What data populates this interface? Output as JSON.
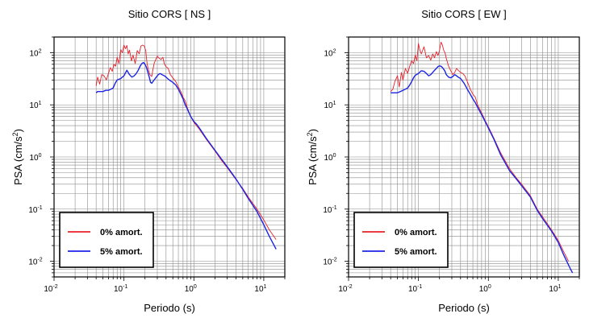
{
  "chart_data": [
    {
      "type": "line",
      "title": "Sitio CORS [ NS ]",
      "xlabel": "Periodo (s)",
      "ylabel_main": "PSA (cm/s",
      "ylabel_sup": "2",
      "ylabel_end": ")",
      "x_scale": "log",
      "y_scale": "log",
      "xlim": [
        0.01,
        20
      ],
      "ylim": [
        0.005,
        200
      ],
      "grid": true,
      "legend_position": "bottom-left",
      "x_ticks": [
        {
          "base": "10",
          "exp": "-2",
          "value": 0.01
        },
        {
          "base": "10",
          "exp": "-1",
          "value": 0.1
        },
        {
          "base": "10",
          "exp": "0",
          "value": 1
        },
        {
          "base": "10",
          "exp": "1",
          "value": 10
        }
      ],
      "y_ticks": [
        {
          "base": "10",
          "exp": "-2",
          "value": 0.01
        },
        {
          "base": "10",
          "exp": "-1",
          "value": 0.1
        },
        {
          "base": "10",
          "exp": "0",
          "value": 1
        },
        {
          "base": "10",
          "exp": "1",
          "value": 10
        },
        {
          "base": "10",
          "exp": "2",
          "value": 100
        }
      ],
      "series": [
        {
          "name": "0% amort.",
          "color": "#e8202a",
          "points": [
            [
              0.04,
              23
            ],
            [
              0.042,
              34
            ],
            [
              0.045,
              25
            ],
            [
              0.048,
              38
            ],
            [
              0.052,
              36
            ],
            [
              0.056,
              30
            ],
            [
              0.06,
              40
            ],
            [
              0.064,
              52
            ],
            [
              0.068,
              44
            ],
            [
              0.072,
              60
            ],
            [
              0.076,
              55
            ],
            [
              0.08,
              82
            ],
            [
              0.085,
              62
            ],
            [
              0.09,
              115
            ],
            [
              0.095,
              100
            ],
            [
              0.1,
              140
            ],
            [
              0.105,
              120
            ],
            [
              0.11,
              138
            ],
            [
              0.115,
              95
            ],
            [
              0.12,
              112
            ],
            [
              0.128,
              70
            ],
            [
              0.135,
              90
            ],
            [
              0.145,
              62
            ],
            [
              0.155,
              110
            ],
            [
              0.165,
              95
            ],
            [
              0.175,
              135
            ],
            [
              0.185,
              140
            ],
            [
              0.195,
              135
            ],
            [
              0.205,
              110
            ],
            [
              0.215,
              60
            ],
            [
              0.225,
              45
            ],
            [
              0.235,
              38
            ],
            [
              0.25,
              35
            ],
            [
              0.26,
              48
            ],
            [
              0.27,
              62
            ],
            [
              0.285,
              74
            ],
            [
              0.3,
              86
            ],
            [
              0.32,
              78
            ],
            [
              0.34,
              74
            ],
            [
              0.36,
              82
            ],
            [
              0.38,
              60
            ],
            [
              0.4,
              54
            ],
            [
              0.43,
              50
            ],
            [
              0.46,
              38
            ],
            [
              0.5,
              33
            ],
            [
              0.55,
              28
            ],
            [
              0.6,
              22
            ],
            [
              0.65,
              18
            ],
            [
              0.7,
              14
            ],
            [
              0.75,
              12
            ],
            [
              0.8,
              9
            ],
            [
              0.9,
              6
            ],
            [
              1.0,
              4.6
            ],
            [
              1.2,
              3.4
            ],
            [
              1.5,
              2.2
            ],
            [
              2,
              1.3
            ],
            [
              2.5,
              0.85
            ],
            [
              3,
              0.62
            ],
            [
              4,
              0.37
            ],
            [
              5,
              0.25
            ],
            [
              6,
              0.17
            ],
            [
              8,
              0.1
            ],
            [
              10,
              0.062
            ],
            [
              12,
              0.04
            ],
            [
              15,
              0.026
            ]
          ]
        },
        {
          "name": "5% amort.",
          "color": "#1b23e6",
          "points": [
            [
              0.04,
              17
            ],
            [
              0.042,
              18
            ],
            [
              0.045,
              18
            ],
            [
              0.05,
              18
            ],
            [
              0.055,
              19
            ],
            [
              0.06,
              19
            ],
            [
              0.065,
              20
            ],
            [
              0.07,
              21
            ],
            [
              0.075,
              26
            ],
            [
              0.08,
              30
            ],
            [
              0.09,
              32
            ],
            [
              0.1,
              36
            ],
            [
              0.11,
              46
            ],
            [
              0.12,
              38
            ],
            [
              0.13,
              34
            ],
            [
              0.14,
              36
            ],
            [
              0.15,
              40
            ],
            [
              0.16,
              46
            ],
            [
              0.17,
              55
            ],
            [
              0.18,
              62
            ],
            [
              0.19,
              65
            ],
            [
              0.2,
              60
            ],
            [
              0.21,
              52
            ],
            [
              0.22,
              42
            ],
            [
              0.23,
              34
            ],
            [
              0.24,
              27
            ],
            [
              0.25,
              26
            ],
            [
              0.27,
              30
            ],
            [
              0.29,
              34
            ],
            [
              0.31,
              38
            ],
            [
              0.33,
              40
            ],
            [
              0.35,
              38
            ],
            [
              0.38,
              36
            ],
            [
              0.42,
              32
            ],
            [
              0.46,
              29
            ],
            [
              0.5,
              27
            ],
            [
              0.55,
              24
            ],
            [
              0.6,
              20
            ],
            [
              0.65,
              16
            ],
            [
              0.7,
              13
            ],
            [
              0.75,
              10
            ],
            [
              0.8,
              8.5
            ],
            [
              0.9,
              6
            ],
            [
              1.0,
              4.8
            ],
            [
              1.1,
              4.2
            ],
            [
              1.2,
              3.6
            ],
            [
              1.5,
              2.3
            ],
            [
              2,
              1.35
            ],
            [
              2.5,
              0.9
            ],
            [
              3,
              0.65
            ],
            [
              4,
              0.38
            ],
            [
              5,
              0.24
            ],
            [
              6,
              0.16
            ],
            [
              8,
              0.09
            ],
            [
              10,
              0.05
            ],
            [
              12,
              0.03
            ],
            [
              15,
              0.017
            ]
          ]
        }
      ]
    },
    {
      "type": "line",
      "title": "Sitio CORS [ EW ]",
      "xlabel": "Periodo (s)",
      "ylabel_main": "PSA (cm/s",
      "ylabel_sup": "2",
      "ylabel_end": ")",
      "x_scale": "log",
      "y_scale": "log",
      "xlim": [
        0.01,
        20
      ],
      "ylim": [
        0.005,
        200
      ],
      "grid": true,
      "legend_position": "bottom-left",
      "x_ticks": [
        {
          "base": "10",
          "exp": "-2",
          "value": 0.01
        },
        {
          "base": "10",
          "exp": "-1",
          "value": 0.1
        },
        {
          "base": "10",
          "exp": "0",
          "value": 1
        },
        {
          "base": "10",
          "exp": "1",
          "value": 10
        }
      ],
      "y_ticks": [
        {
          "base": "10",
          "exp": "-2",
          "value": 0.01
        },
        {
          "base": "10",
          "exp": "-1",
          "value": 0.1
        },
        {
          "base": "10",
          "exp": "0",
          "value": 1
        },
        {
          "base": "10",
          "exp": "1",
          "value": 10
        },
        {
          "base": "10",
          "exp": "2",
          "value": 100
        }
      ],
      "series": [
        {
          "name": "0% amort.",
          "color": "#e8202a",
          "points": [
            [
              0.04,
              18
            ],
            [
              0.043,
              20
            ],
            [
              0.046,
              28
            ],
            [
              0.05,
              36
            ],
            [
              0.053,
              22
            ],
            [
              0.057,
              42
            ],
            [
              0.06,
              30
            ],
            [
              0.065,
              50
            ],
            [
              0.07,
              40
            ],
            [
              0.075,
              55
            ],
            [
              0.08,
              70
            ],
            [
              0.085,
              62
            ],
            [
              0.09,
              90
            ],
            [
              0.095,
              70
            ],
            [
              0.1,
              150
            ],
            [
              0.105,
              110
            ],
            [
              0.11,
              95
            ],
            [
              0.12,
              130
            ],
            [
              0.13,
              80
            ],
            [
              0.14,
              88
            ],
            [
              0.15,
              72
            ],
            [
              0.16,
              95
            ],
            [
              0.17,
              80
            ],
            [
              0.18,
              105
            ],
            [
              0.19,
              88
            ],
            [
              0.2,
              110
            ],
            [
              0.21,
              160
            ],
            [
              0.22,
              140
            ],
            [
              0.23,
              110
            ],
            [
              0.24,
              100
            ],
            [
              0.25,
              78
            ],
            [
              0.27,
              55
            ],
            [
              0.29,
              45
            ],
            [
              0.31,
              38
            ],
            [
              0.33,
              42
            ],
            [
              0.35,
              50
            ],
            [
              0.37,
              46
            ],
            [
              0.4,
              42
            ],
            [
              0.43,
              40
            ],
            [
              0.46,
              36
            ],
            [
              0.5,
              28
            ],
            [
              0.55,
              20
            ],
            [
              0.6,
              16
            ],
            [
              0.65,
              14
            ],
            [
              0.7,
              10
            ],
            [
              0.8,
              7
            ],
            [
              0.9,
              5
            ],
            [
              1.0,
              3.8
            ],
            [
              1.2,
              2.3
            ],
            [
              1.5,
              1.2
            ],
            [
              2,
              0.6
            ],
            [
              2.5,
              0.4
            ],
            [
              3,
              0.3
            ],
            [
              4,
              0.18
            ],
            [
              5,
              0.1
            ],
            [
              6,
              0.07
            ],
            [
              8,
              0.04
            ],
            [
              10,
              0.025
            ],
            [
              12,
              0.015
            ],
            [
              14,
              0.01
            ]
          ]
        },
        {
          "name": "5% amort.",
          "color": "#1b23e6",
          "points": [
            [
              0.04,
              17
            ],
            [
              0.045,
              17
            ],
            [
              0.05,
              17
            ],
            [
              0.055,
              18
            ],
            [
              0.06,
              19
            ],
            [
              0.065,
              20
            ],
            [
              0.07,
              21
            ],
            [
              0.075,
              24
            ],
            [
              0.08,
              28
            ],
            [
              0.085,
              33
            ],
            [
              0.09,
              37
            ],
            [
              0.1,
              40
            ],
            [
              0.11,
              45
            ],
            [
              0.12,
              44
            ],
            [
              0.13,
              40
            ],
            [
              0.14,
              36
            ],
            [
              0.15,
              38
            ],
            [
              0.16,
              42
            ],
            [
              0.17,
              46
            ],
            [
              0.18,
              50
            ],
            [
              0.19,
              54
            ],
            [
              0.2,
              56
            ],
            [
              0.21,
              55
            ],
            [
              0.22,
              52
            ],
            [
              0.23,
              48
            ],
            [
              0.24,
              44
            ],
            [
              0.25,
              38
            ],
            [
              0.27,
              34
            ],
            [
              0.29,
              33
            ],
            [
              0.31,
              35
            ],
            [
              0.33,
              38
            ],
            [
              0.35,
              36
            ],
            [
              0.37,
              34
            ],
            [
              0.4,
              32
            ],
            [
              0.45,
              26
            ],
            [
              0.5,
              20
            ],
            [
              0.55,
              16
            ],
            [
              0.6,
              13
            ],
            [
              0.65,
              11
            ],
            [
              0.7,
              9
            ],
            [
              0.8,
              6.5
            ],
            [
              0.9,
              4.8
            ],
            [
              1.0,
              3.6
            ],
            [
              1.2,
              2.2
            ],
            [
              1.5,
              1.1
            ],
            [
              2,
              0.55
            ],
            [
              2.5,
              0.38
            ],
            [
              3,
              0.28
            ],
            [
              4,
              0.17
            ],
            [
              5,
              0.095
            ],
            [
              6,
              0.065
            ],
            [
              8,
              0.038
            ],
            [
              10,
              0.023
            ],
            [
              12,
              0.013
            ],
            [
              14,
              0.0085
            ],
            [
              15,
              0.007
            ],
            [
              16,
              0.006
            ]
          ]
        }
      ]
    }
  ]
}
